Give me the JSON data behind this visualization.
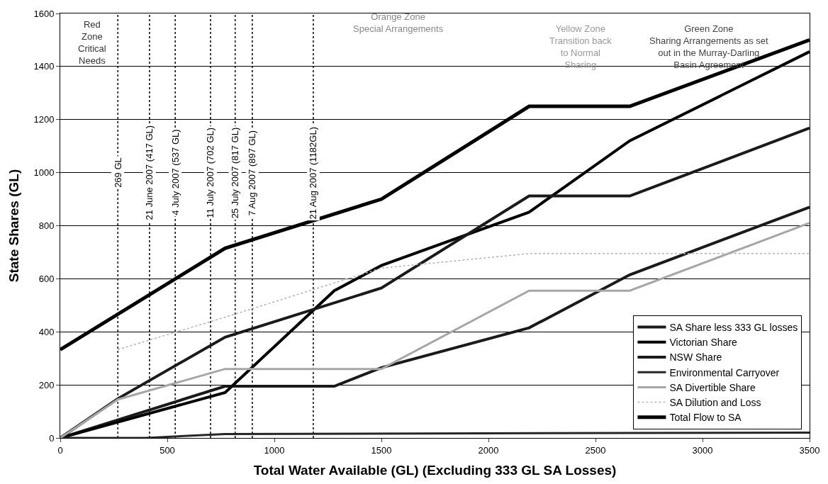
{
  "chart_data": {
    "type": "line",
    "xlabel": "Total Water Available (GL) (Excluding 333 GL SA Losses)",
    "ylabel": "State Shares (GL)",
    "xlim": [
      0,
      3500
    ],
    "xticks": [
      0,
      500,
      1000,
      1500,
      2000,
      2500,
      3000,
      3500
    ],
    "ylim": [
      0,
      1600
    ],
    "yticks": [
      0,
      200,
      400,
      600,
      800,
      1000,
      1200,
      1400,
      1600
    ],
    "grid": "y",
    "legend": "bottom right",
    "marker": "none",
    "series": [
      {
        "name": "SA Share less 333 GL losses",
        "color": "#1a1a1a",
        "x": [
          0,
          770,
          1280,
          1500,
          2190,
          2660,
          3500
        ],
        "values": [
          0,
          195,
          195,
          265,
          415,
          615,
          870
        ]
      },
      {
        "name": "Victorian Share",
        "color": "#000000",
        "x": [
          0,
          770,
          1280,
          1500,
          2190,
          2660,
          3500
        ],
        "values": [
          0,
          171,
          555,
          650,
          851,
          1120,
          1456
        ]
      },
      {
        "name": "NSW Share",
        "color": "#1a1a1a",
        "x": [
          0,
          269,
          770,
          1500,
          2190,
          2660,
          3500
        ],
        "values": [
          0,
          148,
          380,
          565,
          912,
          912,
          1168
        ]
      },
      {
        "name": "Environmental Carryover",
        "color": "#262626",
        "x": [
          0,
          400,
          770,
          3500
        ],
        "values": [
          0,
          0,
          15,
          20
        ]
      },
      {
        "name": "SA Divertible Share",
        "color": "#a6a6a6",
        "x": [
          0,
          269,
          770,
          1500,
          2190,
          2660,
          3500
        ],
        "values": [
          0,
          145,
          260,
          260,
          555,
          555,
          810
        ]
      },
      {
        "name": "SA Dilution and Loss",
        "color": "#b3b3b3",
        "line_style": "dotted",
        "x": [
          269,
          770,
          1500,
          2190,
          2660,
          3500
        ],
        "values": [
          333,
          455,
          640,
          695,
          695,
          695
        ]
      },
      {
        "name": "Total Flow to SA",
        "color": "#000000",
        "x": [
          0,
          770,
          1500,
          2190,
          2660,
          3500
        ],
        "values": [
          333,
          715,
          900,
          1250,
          1250,
          1500
        ]
      }
    ],
    "ref_lines": [
      {
        "axis": "x",
        "value": 269,
        "label": "269 GL",
        "line_style": "dotted",
        "color": "#000000"
      },
      {
        "axis": "x",
        "value": 417,
        "label": "21 June 2007 (417 GL)",
        "line_style": "dotted",
        "color": "#000000"
      },
      {
        "axis": "x",
        "value": 537,
        "label": "4 July 2007 (537 GL)",
        "line_style": "dotted",
        "color": "#000000"
      },
      {
        "axis": "x",
        "value": 702,
        "label": "11 July 2007 (702 GL)",
        "line_style": "dotted",
        "color": "#000000"
      },
      {
        "axis": "x",
        "value": 817,
        "label": "25 July 2007 (817 GL)",
        "line_style": "dotted",
        "color": "#000000"
      },
      {
        "axis": "x",
        "value": 897,
        "label": "7 Aug 2007 (897 GL)",
        "line_style": "dotted",
        "color": "#000000"
      },
      {
        "axis": "x",
        "value": 1182,
        "label": "21 Aug 2007 (1182GL)",
        "line_style": "dotted",
        "color": "#000000"
      }
    ],
    "annotations": [
      "Red\nZone\nCritical\nNeeds",
      "Orange Zone\nSpecial Arrangements",
      "Yellow Zone\nTransition back\nto Normal\nSharing",
      "Green Zone\nSharing Arrangements as set\nout in the Murray-Darling\nBasin Agreement"
    ]
  }
}
